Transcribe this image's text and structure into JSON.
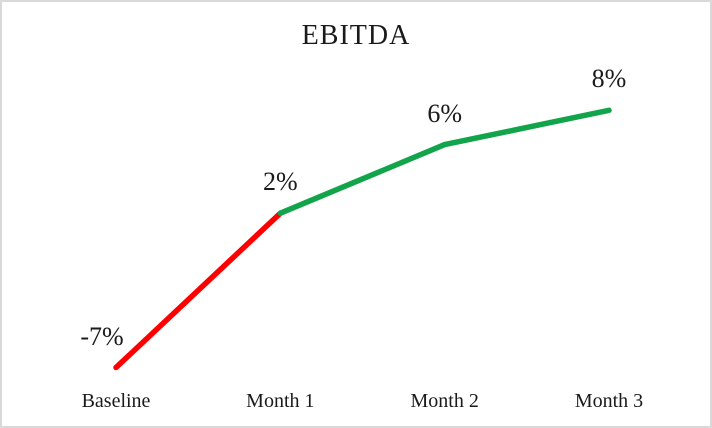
{
  "window": {
    "background": "#FFFFFF",
    "border_color": "#D9D9D9"
  },
  "chart_data": {
    "type": "line",
    "title": "EBITDA",
    "categories": [
      "Baseline",
      "Month 1",
      "Month 2",
      "Month 3"
    ],
    "values": [
      -7,
      2,
      6,
      8
    ],
    "point_labels": [
      "-7%",
      "2%",
      "6%",
      "8%"
    ],
    "xlabel": "",
    "ylabel": "",
    "ylim": [
      -10,
      10
    ],
    "grid": false,
    "legend": false,
    "segment_colors": [
      "#FF0000",
      "#12A44A",
      "#12A44A"
    ],
    "colors": {
      "decline_segment": "#FF0000",
      "growth_segment": "#12A44A",
      "text": "#1A1A1A"
    }
  }
}
